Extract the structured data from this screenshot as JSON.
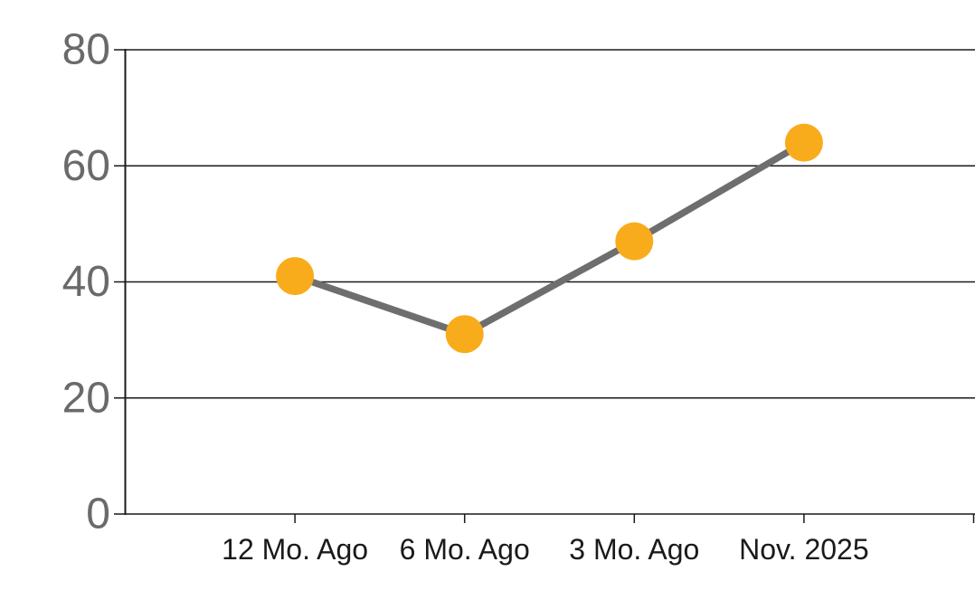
{
  "chart_data": {
    "type": "line",
    "categories": [
      "12 Mo. Ago",
      "6 Mo. Ago",
      "3 Mo. Ago",
      "Nov. 2025"
    ],
    "series": [
      {
        "name": "series-1",
        "values": [
          41,
          31,
          47,
          64
        ]
      }
    ],
    "title": "",
    "xlabel": "",
    "ylabel": "",
    "ylim": [
      0,
      80
    ],
    "yticks": [
      0,
      20,
      40,
      60,
      80
    ],
    "grid": "horizontal",
    "legend": "none",
    "colors": {
      "marker": "#F9AC1B",
      "line": "#6E6E6E",
      "grid": "#1A1A1A",
      "axis": "#1A1A1A",
      "ytick_label": "#6A6A6A",
      "xtick_label": "#1A1A1A",
      "background": "#FFFFFF"
    }
  }
}
